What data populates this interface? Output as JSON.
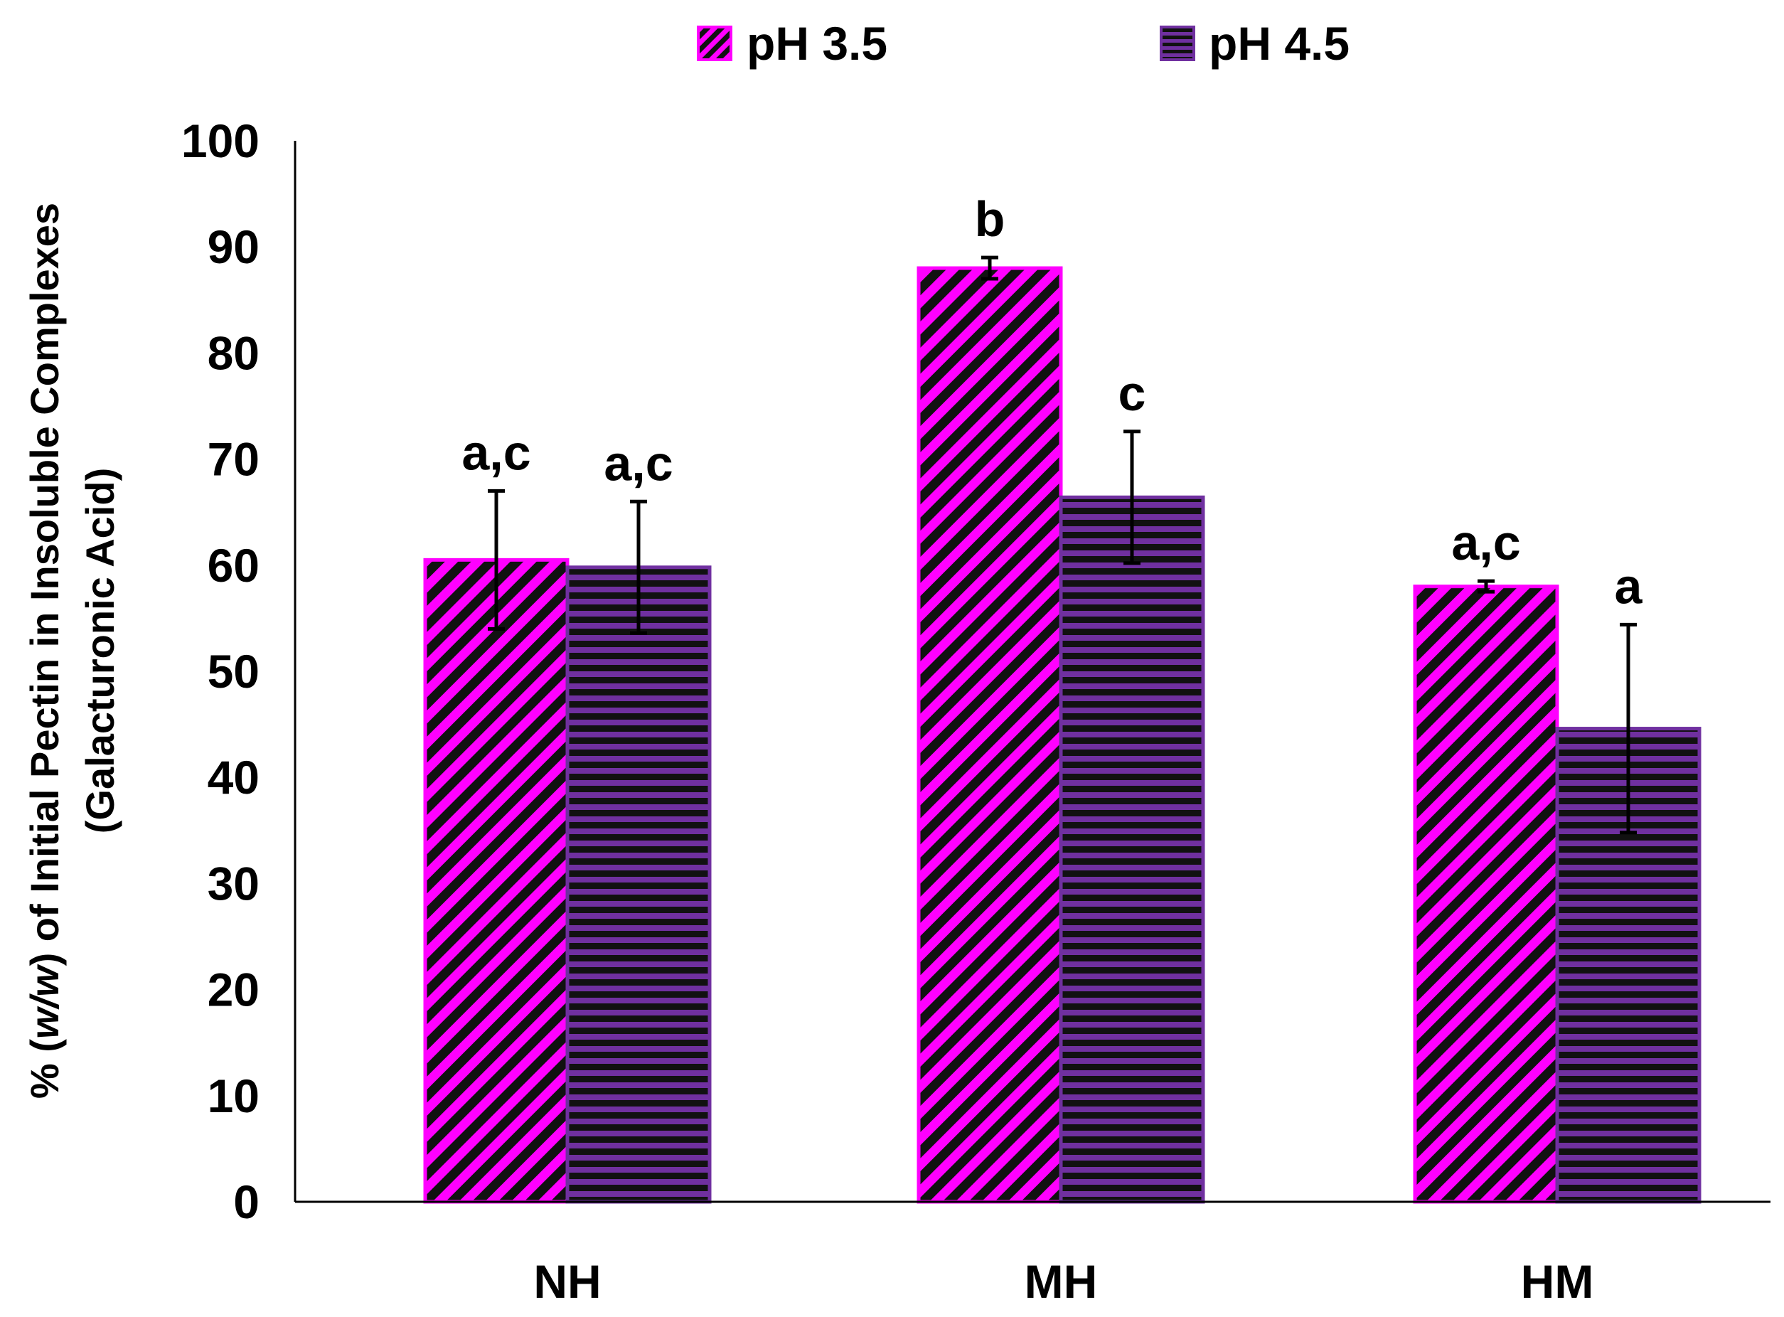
{
  "chart_data": {
    "type": "bar",
    "title": "",
    "categories": [
      "NH",
      "MH",
      "HM"
    ],
    "series": [
      {
        "name": "pH 3.5",
        "color": "#ff00ff",
        "pattern": "diagonal-stripes",
        "values": [
          60.5,
          88,
          58
        ],
        "errors": [
          6.5,
          1,
          0.5
        ],
        "significance": [
          "a,c",
          "b",
          "a,c"
        ]
      },
      {
        "name": "pH 4.5",
        "color": "#7030a0",
        "pattern": "horizontal-stripes",
        "values": [
          59.8,
          66.4,
          44.6
        ],
        "errors": [
          6.2,
          6.2,
          9.8
        ],
        "significance": [
          "a,c",
          "c",
          "a"
        ]
      }
    ],
    "xlabel": "",
    "ylabel_line1": "% (w/w) of Initial Pectin in Insoluble Complexes",
    "ylabel_line2": "(Galacturonic Acid)",
    "ylabel_prefix": "% (",
    "ylabel_italic": "w/w",
    "ylabel_suffix": ") of Initial Pectin in Insoluble Complexes",
    "ylim": [
      0,
      100
    ],
    "yticks": [
      0,
      10,
      20,
      30,
      40,
      50,
      60,
      70,
      80,
      90,
      100
    ],
    "grid": false,
    "legend_position": "top-center"
  }
}
